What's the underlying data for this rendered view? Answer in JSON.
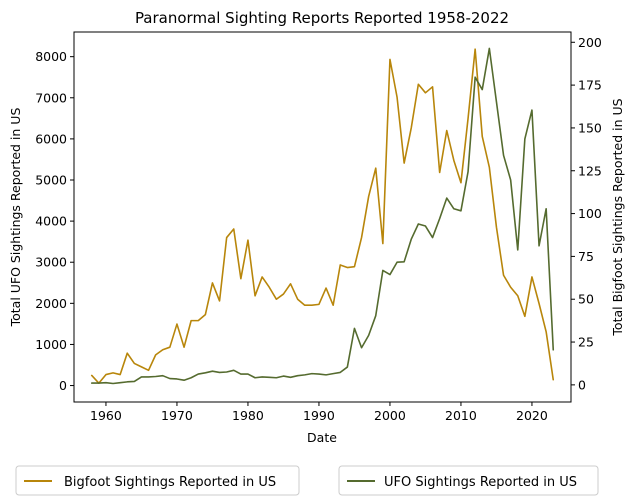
{
  "chart_data": {
    "type": "line",
    "title": "Paranormal Sighting Reports Reported 1958-2022",
    "xlabel": "Date",
    "ylabel_left": "Total UFO Sightings Reported in US",
    "ylabel_right": "Total Bigfoot Sightings Reported in US",
    "xlim": [
      1955.5,
      2025.5
    ],
    "ylim_left": [
      -400,
      8600
    ],
    "ylim_right": [
      -10,
      206
    ],
    "x_ticks": [
      1960,
      1970,
      1980,
      1990,
      2000,
      2010,
      2020
    ],
    "y_ticks_left": [
      0,
      1000,
      2000,
      3000,
      4000,
      5000,
      6000,
      7000,
      8000
    ],
    "y_ticks_right": [
      0,
      25,
      50,
      75,
      100,
      125,
      150,
      175,
      200
    ],
    "legend_placement": "below",
    "grid": false,
    "series": [
      {
        "name": "Bigfoot Sightings Reported in US",
        "color": "#b8860b",
        "axis": "right",
        "x": [
          1958,
          1959,
          1960,
          1961,
          1962,
          1963,
          1964,
          1965,
          1966,
          1967,
          1968,
          1969,
          1970,
          1971,
          1972,
          1973,
          1974,
          1975,
          1976,
          1977,
          1978,
          1979,
          1980,
          1981,
          1982,
          1983,
          1984,
          1985,
          1986,
          1987,
          1988,
          1989,
          1990,
          1991,
          1992,
          1993,
          1994,
          1995,
          1996,
          1997,
          1998,
          1999,
          2000,
          2001,
          2002,
          2003,
          2004,
          2005,
          2006,
          2007,
          2008,
          2009,
          2010,
          2011,
          2012,
          2013,
          2014,
          2015,
          2016,
          2017,
          2018,
          2019,
          2020,
          2021,
          2022,
          2023
        ],
        "values": [
          5.5,
          1,
          6,
          7,
          6,
          18.5,
          12.5,
          10.5,
          8.5,
          17.5,
          20.5,
          22,
          35.5,
          22,
          37.5,
          37.5,
          41,
          59.5,
          49,
          86,
          91,
          62,
          84.5,
          52,
          63,
          57,
          50,
          53,
          59,
          50,
          46.5,
          46.5,
          47,
          56.5,
          46.5,
          70,
          68.5,
          69,
          86,
          110,
          126.5,
          82.5,
          190,
          168,
          129.5,
          150,
          175.5,
          170.5,
          174,
          124,
          148.5,
          131,
          118,
          155.5,
          196,
          145,
          127,
          92,
          64,
          57,
          52,
          40,
          63,
          47.5,
          31,
          3
        ]
      },
      {
        "name": "UFO Sightings Reported in US",
        "color": "#556b2f",
        "axis": "left",
        "x": [
          1958,
          1959,
          1960,
          1961,
          1962,
          1963,
          1964,
          1965,
          1966,
          1967,
          1968,
          1969,
          1970,
          1971,
          1972,
          1973,
          1974,
          1975,
          1976,
          1977,
          1978,
          1979,
          1980,
          1981,
          1982,
          1983,
          1984,
          1985,
          1986,
          1987,
          1988,
          1989,
          1990,
          1991,
          1992,
          1993,
          1994,
          1995,
          1996,
          1997,
          1998,
          1999,
          2000,
          2001,
          2002,
          2003,
          2004,
          2005,
          2006,
          2007,
          2008,
          2009,
          2010,
          2011,
          2012,
          2013,
          2014,
          2015,
          2016,
          2017,
          2018,
          2019,
          2020,
          2021,
          2022,
          2023
        ],
        "values": [
          60,
          60,
          70,
          50,
          70,
          90,
          100,
          210,
          210,
          220,
          240,
          170,
          160,
          130,
          190,
          280,
          310,
          350,
          320,
          330,
          370,
          280,
          280,
          190,
          210,
          200,
          190,
          230,
          200,
          240,
          260,
          290,
          280,
          260,
          290,
          320,
          450,
          1390,
          920,
          1220,
          1700,
          2800,
          2700,
          3000,
          3010,
          3560,
          3930,
          3880,
          3600,
          4060,
          4560,
          4300,
          4250,
          5200,
          7500,
          7200,
          8200,
          6900,
          5600,
          5000,
          3300,
          6000,
          6700,
          3400,
          4300,
          870
        ]
      }
    ]
  }
}
